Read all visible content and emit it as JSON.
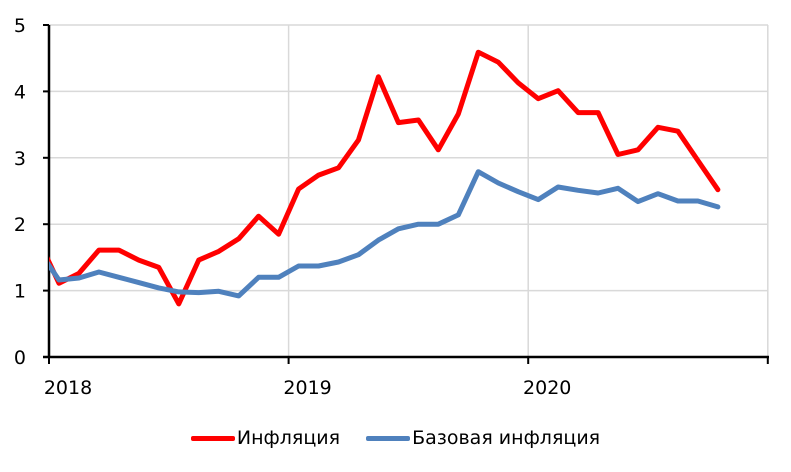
{
  "chart_data": {
    "type": "line",
    "title": "",
    "xlabel": "",
    "ylabel": "",
    "ylim": [
      0,
      5
    ],
    "yticks": [
      0,
      1,
      2,
      3,
      4,
      5
    ],
    "xticks": [
      "2018",
      "2019",
      "2020",
      ""
    ],
    "grid": {
      "horizontal": true,
      "vertical": true
    },
    "legend_position": "bottom",
    "x": [
      "2017-12",
      "2018-01",
      "2018-02",
      "2018-03",
      "2018-04",
      "2018-05",
      "2018-06",
      "2018-07",
      "2018-08",
      "2018-09",
      "2018-10",
      "2018-11",
      "2018-12",
      "2019-01",
      "2019-02",
      "2019-03",
      "2019-04",
      "2019-05",
      "2019-06",
      "2019-07",
      "2019-08",
      "2019-09",
      "2019-10",
      "2019-11",
      "2019-12",
      "2020-01",
      "2020-02",
      "2020-03",
      "2020-04",
      "2020-05",
      "2020-06",
      "2020-07",
      "2020-08",
      "2020-09",
      "2020-10"
    ],
    "series": [
      {
        "name": "Инфляция",
        "color": "#FF0000",
        "values": [
          1.75,
          1.11,
          1.26,
          1.61,
          1.61,
          1.46,
          1.35,
          0.8,
          1.46,
          1.59,
          1.78,
          2.12,
          1.85,
          2.53,
          2.74,
          2.85,
          3.27,
          4.22,
          3.53,
          3.57,
          3.12,
          3.66,
          4.59,
          4.44,
          4.13,
          3.89,
          4.01,
          3.68,
          3.68,
          3.05,
          3.12,
          3.46,
          3.4,
          2.96,
          2.52
        ]
      },
      {
        "name": "Базовая инфляция",
        "color": "#4F81BD",
        "values": [
          1.6,
          1.16,
          1.19,
          1.28,
          1.2,
          1.12,
          1.04,
          0.98,
          0.97,
          0.99,
          0.92,
          1.2,
          1.2,
          1.37,
          1.37,
          1.43,
          1.54,
          1.76,
          1.93,
          2.0,
          2.0,
          2.14,
          2.79,
          2.62,
          2.49,
          2.37,
          2.56,
          2.51,
          2.47,
          2.54,
          2.34,
          2.46,
          2.35,
          2.35,
          2.26
        ]
      }
    ]
  },
  "legend": {
    "items": [
      {
        "label": "Инфляция",
        "color": "#FF0000"
      },
      {
        "label": "Базовая инфляция",
        "color": "#4F81BD"
      }
    ]
  }
}
